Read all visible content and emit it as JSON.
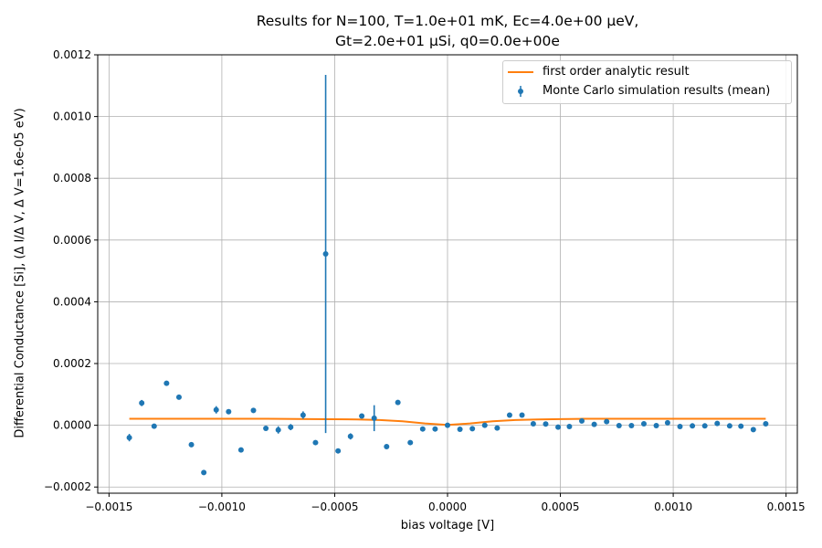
{
  "chart_data": {
    "type": "scatter",
    "title_line1": "Results for N=100, T=1.0e+01 mK, Ec=4.0e+00 μeV,",
    "title_line2": "Gt=2.0e+01 μSi, q0=0.0e+00e",
    "xlabel": "bias voltage [V]",
    "ylabel": "Differential Conductance [Si], (Δ I/Δ V, Δ V=1.6e-05 eV)",
    "xlim": [
      -0.00155,
      0.00155
    ],
    "ylim": [
      -0.00022,
      0.0012
    ],
    "xticks": [
      -0.0015,
      -0.001,
      -0.0005,
      0.0,
      0.0005,
      0.001,
      0.0015
    ],
    "xtick_labels": [
      "−0.0015",
      "−0.0010",
      "−0.0005",
      "0.0000",
      "0.0005",
      "0.0010",
      "0.0015"
    ],
    "yticks": [
      -0.0002,
      0.0,
      0.0002,
      0.0004,
      0.0006,
      0.0008,
      0.001,
      0.0012
    ],
    "ytick_labels": [
      "−0.0002",
      "0.0000",
      "0.0002",
      "0.0004",
      "0.0006",
      "0.0008",
      "0.0010",
      "0.0012"
    ],
    "grid": true,
    "legend_position": "top-right",
    "colors": {
      "scatter": "#1f77b4",
      "line": "#ff7f0e",
      "grid": "#b0b0b0"
    },
    "series": [
      {
        "name": "first order analytic result",
        "kind": "line",
        "x": [
          -0.00141,
          -0.0012,
          -0.001,
          -0.0008,
          -0.0006,
          -0.0004,
          -0.0003,
          -0.0002,
          -0.0001,
          0.0,
          0.0001,
          0.0002,
          0.0003,
          0.0004,
          0.0005,
          0.0006,
          0.0008,
          0.001,
          0.0012,
          0.00141
        ],
        "y": [
          2.1e-05,
          2.1e-05,
          2.1e-05,
          2.1e-05,
          2e-05,
          1.9e-05,
          1.7e-05,
          1.3e-05,
          6e-06,
          1e-06,
          6e-06,
          1.3e-05,
          1.7e-05,
          1.9e-05,
          2e-05,
          2.1e-05,
          2.1e-05,
          2.1e-05,
          2.1e-05,
          2.1e-05
        ]
      },
      {
        "name": "Monte Carlo simulation results (mean)",
        "kind": "errorbar",
        "points": [
          {
            "x": -0.00141,
            "y": -4e-05,
            "err": 1.2e-05
          },
          {
            "x": -0.001355,
            "y": 7.2e-05,
            "err": 1e-05
          },
          {
            "x": -0.0013,
            "y": -3e-06,
            "err": 0
          },
          {
            "x": -0.001245,
            "y": 0.000136,
            "err": 8e-06
          },
          {
            "x": -0.00119,
            "y": 9.1e-05,
            "err": 0
          },
          {
            "x": -0.001135,
            "y": -6.3e-05,
            "err": 0
          },
          {
            "x": -0.00108,
            "y": -0.000153,
            "err": 0
          },
          {
            "x": -0.001025,
            "y": 5e-05,
            "err": 1.2e-05
          },
          {
            "x": -0.00097,
            "y": 4.4e-05,
            "err": 0
          },
          {
            "x": -0.000915,
            "y": -8e-05,
            "err": 0
          },
          {
            "x": -0.00086,
            "y": 4.8e-05,
            "err": 8e-06
          },
          {
            "x": -0.000805,
            "y": -1e-05,
            "err": 0
          },
          {
            "x": -0.00075,
            "y": -1.5e-05,
            "err": 1.2e-05
          },
          {
            "x": -0.000695,
            "y": -6e-06,
            "err": 1e-05
          },
          {
            "x": -0.00064,
            "y": 3.3e-05,
            "err": 1.2e-05
          },
          {
            "x": -0.000585,
            "y": -5.6e-05,
            "err": 0
          },
          {
            "x": -0.00054,
            "y": 0.000555,
            "err": 0.00058
          },
          {
            "x": -0.000485,
            "y": -8.3e-05,
            "err": 8e-06
          },
          {
            "x": -0.00043,
            "y": -3.6e-05,
            "err": 1e-05
          },
          {
            "x": -0.00038,
            "y": 3e-05,
            "err": 0
          },
          {
            "x": -0.000325,
            "y": 2.3e-05,
            "err": 4.2e-05
          },
          {
            "x": -0.00027,
            "y": -6.9e-05,
            "err": 0
          },
          {
            "x": -0.00022,
            "y": 7.4e-05,
            "err": 0
          },
          {
            "x": -0.000165,
            "y": -5.6e-05,
            "err": 0
          },
          {
            "x": -0.00011,
            "y": -1.2e-05,
            "err": 0
          },
          {
            "x": -5.5e-05,
            "y": -1.2e-05,
            "err": 0
          },
          {
            "x": 0.0,
            "y": 0.0,
            "err": 0
          },
          {
            "x": 5.5e-05,
            "y": -1.3e-05,
            "err": 0
          },
          {
            "x": 0.00011,
            "y": -1.1e-05,
            "err": 0
          },
          {
            "x": 0.000165,
            "y": 0.0,
            "err": 0
          },
          {
            "x": 0.00022,
            "y": -9e-06,
            "err": 0
          },
          {
            "x": 0.000275,
            "y": 3.3e-05,
            "err": 0
          },
          {
            "x": 0.00033,
            "y": 3.3e-05,
            "err": 0
          },
          {
            "x": 0.00038,
            "y": 5e-06,
            "err": 0
          },
          {
            "x": 0.000435,
            "y": 4e-06,
            "err": 0
          },
          {
            "x": 0.00049,
            "y": -6e-06,
            "err": 0
          },
          {
            "x": 0.00054,
            "y": -4e-06,
            "err": 0
          },
          {
            "x": 0.000595,
            "y": 1.4e-05,
            "err": 0
          },
          {
            "x": 0.00065,
            "y": 3e-06,
            "err": 0
          },
          {
            "x": 0.000705,
            "y": 1.2e-05,
            "err": 0
          },
          {
            "x": 0.00076,
            "y": -1e-06,
            "err": 0
          },
          {
            "x": 0.000815,
            "y": -1e-06,
            "err": 0
          },
          {
            "x": 0.00087,
            "y": 5e-06,
            "err": 0
          },
          {
            "x": 0.000925,
            "y": -1e-06,
            "err": 0
          },
          {
            "x": 0.000975,
            "y": 8e-06,
            "err": 0
          },
          {
            "x": 0.00103,
            "y": -4e-06,
            "err": 0
          },
          {
            "x": 0.001085,
            "y": -2e-06,
            "err": 0
          },
          {
            "x": 0.00114,
            "y": -2e-06,
            "err": 0
          },
          {
            "x": 0.001195,
            "y": 6e-06,
            "err": 0
          },
          {
            "x": 0.00125,
            "y": -2e-06,
            "err": 0
          },
          {
            "x": 0.0013,
            "y": -3e-06,
            "err": 0
          },
          {
            "x": 0.001355,
            "y": -1.4e-05,
            "err": 0
          },
          {
            "x": 0.00141,
            "y": 5e-06,
            "err": 0
          }
        ]
      }
    ]
  }
}
